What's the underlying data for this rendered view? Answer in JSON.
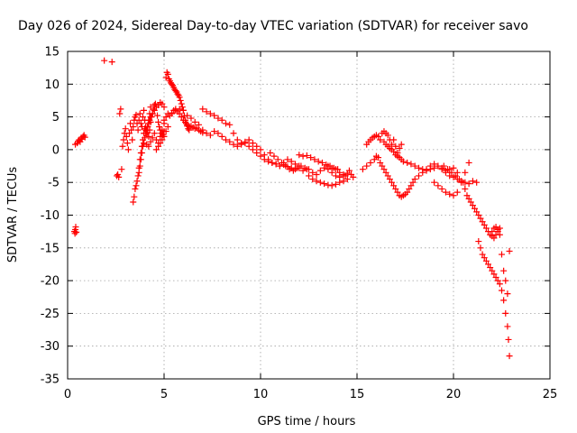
{
  "chart_data": {
    "type": "scatter",
    "title": "Day 026 of 2024, Sidereal Day-to-day VTEC variation (SDTVAR) for receiver savo",
    "xlabel": "GPS time / hours",
    "ylabel": "SDTVAR / TECUs",
    "xlim": [
      0,
      25
    ],
    "ylim": [
      -35,
      15
    ],
    "xticks": [
      0,
      5,
      10,
      15,
      20,
      25
    ],
    "yticks": [
      -35,
      -30,
      -25,
      -20,
      -15,
      -10,
      -5,
      0,
      5,
      10,
      15
    ],
    "grid": true,
    "marker": "plus",
    "marker_color": "#ff0000",
    "series": [
      {
        "name": "SDTVAR",
        "x": [
          0.35,
          0.38,
          0.4,
          0.42,
          0.45,
          0.4,
          0.5,
          0.55,
          0.6,
          0.65,
          0.7,
          0.75,
          0.8,
          0.85,
          0.9,
          1.9,
          2.3,
          2.55,
          2.6,
          2.65,
          2.7,
          2.75,
          2.8,
          2.85,
          2.9,
          2.95,
          3.0,
          3.05,
          3.1,
          3.15,
          3.2,
          3.25,
          3.3,
          3.35,
          3.4,
          3.45,
          3.5,
          3.55,
          3.6,
          3.65,
          3.7,
          3.75,
          3.8,
          3.85,
          3.9,
          3.95,
          4.0,
          4.05,
          4.1,
          4.15,
          4.2,
          4.25,
          4.3,
          3.4,
          3.45,
          3.5,
          3.55,
          3.6,
          3.65,
          3.7,
          3.75,
          3.8,
          3.85,
          3.9,
          3.95,
          4.0,
          4.05,
          4.1,
          4.15,
          4.2,
          4.25,
          4.3,
          4.35,
          4.4,
          4.45,
          4.5,
          4.55,
          4.6,
          4.65,
          4.7,
          4.75,
          4.8,
          4.85,
          4.9,
          4.95,
          5.0,
          3.7,
          3.75,
          3.8,
          3.85,
          3.9,
          3.95,
          4.0,
          4.05,
          4.1,
          4.15,
          4.2,
          4.25,
          4.3,
          4.4,
          4.5,
          4.6,
          4.7,
          4.8,
          4.9,
          5.0,
          4.1,
          4.2,
          4.3,
          4.4,
          4.5,
          4.6,
          4.7,
          4.8,
          4.9,
          5.0,
          4.6,
          4.7,
          4.8,
          4.9,
          5.0,
          5.1,
          5.2,
          5.1,
          5.15,
          5.2,
          5.25,
          5.3,
          5.35,
          5.4,
          5.45,
          5.5,
          5.55,
          5.6,
          5.65,
          5.7,
          5.75,
          5.8,
          5.85,
          5.9,
          5.95,
          6.0,
          6.05,
          6.1,
          6.15,
          6.2,
          6.25,
          6.3,
          5.0,
          5.1,
          5.2,
          5.3,
          5.4,
          5.5,
          5.6,
          5.7,
          5.8,
          5.9,
          6.0,
          6.1,
          6.2,
          6.3,
          6.4,
          6.5,
          6.6,
          6.7,
          6.8,
          6.9,
          7.0,
          5.4,
          5.6,
          5.8,
          6.0,
          6.2,
          6.4,
          6.6,
          6.8,
          7.0,
          7.2,
          7.4,
          7.6,
          7.8,
          8.0,
          8.2,
          8.4,
          8.6,
          8.8,
          9.0,
          9.2,
          9.4,
          9.6,
          9.8,
          10.0,
          10.2,
          10.4,
          10.6,
          10.8,
          11.0,
          11.2,
          11.4,
          11.6,
          11.8,
          12.0,
          7.0,
          7.2,
          7.4,
          7.6,
          7.8,
          8.0,
          8.2,
          8.4,
          8.6,
          8.8,
          9.0,
          9.2,
          9.4,
          9.6,
          9.8,
          10.0,
          10.2,
          10.4,
          10.6,
          10.8,
          11.0,
          11.2,
          11.4,
          11.6,
          11.8,
          12.0,
          12.2,
          12.4,
          10.5,
          10.7,
          10.9,
          11.1,
          11.3,
          11.5,
          11.7,
          11.9,
          12.1,
          12.3,
          12.5,
          12.7,
          12.9,
          13.1,
          13.3,
          13.5,
          13.7,
          13.9,
          14.1,
          14.3,
          12.0,
          12.2,
          12.4,
          12.6,
          12.8,
          13.0,
          13.2,
          13.4,
          13.6,
          13.8,
          14.0,
          12.5,
          12.7,
          12.9,
          13.1,
          13.3,
          13.5,
          13.7,
          13.9,
          14.1,
          14.3,
          14.5,
          13.5,
          13.7,
          13.9,
          14.1,
          14.3,
          14.4,
          14.5,
          14.6,
          14.7,
          14.8,
          15.3,
          15.5,
          15.7,
          15.9,
          15.5,
          15.6,
          15.7,
          15.8,
          15.9,
          16.0,
          16.1,
          16.2,
          16.3,
          16.4,
          16.5,
          16.6,
          16.7,
          16.8,
          16.9,
          17.0,
          17.1,
          17.2,
          17.3,
          16.0,
          16.1,
          16.2,
          16.3,
          16.4,
          16.5,
          16.6,
          16.7,
          16.8,
          16.9,
          17.0,
          17.1,
          17.2,
          17.3,
          17.4,
          17.5,
          17.6,
          17.7,
          17.8,
          17.9,
          18.0,
          18.2,
          18.4,
          18.6,
          18.8,
          19.0,
          19.2,
          19.4,
          19.6,
          19.8,
          20.0,
          20.2,
          20.4,
          20.6,
          20.8,
          21.0,
          21.2,
          16.4,
          16.5,
          16.6,
          16.7,
          16.8,
          16.9,
          17.0,
          17.1,
          17.2,
          17.3,
          17.4,
          17.6,
          17.8,
          18.0,
          18.2,
          18.4,
          18.6,
          18.8,
          19.0,
          19.2,
          19.4,
          19.6,
          19.8,
          20.0,
          20.2,
          19.0,
          19.2,
          19.4,
          19.6,
          19.8,
          20.0,
          20.2,
          20.4,
          20.6,
          20.8,
          19.5,
          19.7,
          19.9,
          20.1,
          20.3,
          20.5,
          20.6,
          20.7,
          20.8,
          20.9,
          21.0,
          21.1,
          21.2,
          21.3,
          21.4,
          21.5,
          21.6,
          21.7,
          21.8,
          21.9,
          22.0,
          22.1,
          22.2,
          22.3,
          22.4,
          21.3,
          21.4,
          21.5,
          21.6,
          21.7,
          21.8,
          21.9,
          22.0,
          22.1,
          22.2,
          22.3,
          22.4,
          22.5,
          22.6,
          22.7,
          22.8,
          22.85,
          22.9,
          22.0,
          22.1,
          22.2,
          22.3,
          22.4,
          22.5,
          22.6,
          22.7,
          22.8,
          22.9
        ],
        "y": [
          -12.5,
          -12.8,
          -12.2,
          -11.8,
          -12.6,
          0.8,
          1.0,
          1.3,
          1.5,
          1.2,
          1.8,
          1.6,
          2.0,
          2.2,
          1.9,
          13.6,
          13.4,
          -4.0,
          -3.8,
          -4.2,
          5.5,
          6.2,
          -3.0,
          0.5,
          1.5,
          2.5,
          3.2,
          2.0,
          1.0,
          0.0,
          2.5,
          4.0,
          3.0,
          1.5,
          3.5,
          4.5,
          5.0,
          5.3,
          4.0,
          3.0,
          4.5,
          5.5,
          4.0,
          3.5,
          5.0,
          6.0,
          4.5,
          3.0,
          2.5,
          3.5,
          4.5,
          5.5,
          6.5,
          -8.0,
          -7.2,
          -6.0,
          -5.5,
          -4.8,
          -4.0,
          -2.8,
          -1.5,
          -0.5,
          0.5,
          1.5,
          2.5,
          3.2,
          3.5,
          3.0,
          2.6,
          2.0,
          3.0,
          4.2,
          5.0,
          5.5,
          6.2,
          6.8,
          7.0,
          6.5,
          5.2,
          4.2,
          3.5,
          3.0,
          2.5,
          2.0,
          2.3,
          2.8,
          -3.5,
          -2.5,
          -1.5,
          -0.5,
          0.5,
          1.0,
          1.8,
          2.5,
          3.0,
          3.5,
          4.0,
          4.5,
          5.0,
          5.5,
          6.0,
          6.5,
          6.8,
          7.2,
          7.0,
          6.5,
          0.8,
          0.5,
          1.2,
          1.8,
          2.5,
          1.5,
          1.0,
          2.0,
          3.0,
          4.0,
          0.0,
          0.5,
          1.0,
          1.5,
          2.0,
          2.8,
          3.5,
          11.0,
          11.8,
          11.5,
          10.8,
          10.5,
          10.2,
          10.0,
          9.8,
          9.5,
          9.2,
          9.0,
          8.8,
          8.5,
          8.3,
          8.0,
          7.5,
          7.0,
          6.5,
          6.0,
          5.2,
          4.5,
          4.0,
          3.6,
          3.2,
          3.0,
          4.5,
          5.0,
          5.5,
          5.2,
          5.6,
          6.0,
          6.2,
          5.8,
          5.5,
          5.0,
          4.5,
          4.2,
          3.8,
          3.5,
          3.6,
          3.4,
          3.2,
          3.3,
          3.0,
          2.8,
          2.6,
          5.5,
          6.0,
          6.2,
          6.0,
          5.2,
          4.8,
          4.2,
          3.8,
          3.0,
          2.5,
          2.2,
          2.8,
          2.5,
          2.0,
          1.5,
          1.2,
          0.8,
          0.5,
          0.8,
          1.0,
          0.5,
          0.0,
          -0.5,
          -1.0,
          -1.5,
          -1.8,
          -2.0,
          -2.2,
          -2.5,
          -2.3,
          -2.6,
          -2.8,
          -3.0,
          -2.5,
          6.2,
          5.8,
          5.5,
          5.2,
          4.8,
          4.5,
          4.0,
          3.8,
          2.5,
          1.5,
          1.0,
          1.2,
          1.5,
          1.0,
          0.5,
          0.0,
          -0.8,
          -1.5,
          -2.0,
          -2.2,
          -2.5,
          -2.0,
          -1.5,
          -1.8,
          -2.2,
          -2.8,
          -3.2,
          -3.0,
          -0.5,
          -1.0,
          -1.5,
          -2.0,
          -2.5,
          -3.0,
          -3.2,
          -2.8,
          -2.5,
          -2.8,
          -3.0,
          -3.5,
          -3.8,
          -3.2,
          -2.8,
          -3.0,
          -3.5,
          -4.0,
          -4.2,
          -4.0,
          -0.8,
          -1.0,
          -0.9,
          -1.2,
          -1.5,
          -1.8,
          -2.0,
          -2.3,
          -2.5,
          -2.8,
          -3.0,
          -4.0,
          -4.5,
          -4.8,
          -5.0,
          -5.2,
          -5.4,
          -5.5,
          -5.3,
          -5.0,
          -4.8,
          -4.5,
          -2.5,
          -2.8,
          -3.0,
          -3.5,
          -3.8,
          -4.0,
          -3.6,
          -3.2,
          -3.8,
          -4.2,
          -3.0,
          -2.5,
          -2.0,
          -1.5,
          0.8,
          1.2,
          1.5,
          1.8,
          2.0,
          2.2,
          2.0,
          1.5,
          2.5,
          2.8,
          2.5,
          2.2,
          1.5,
          0.8,
          1.5,
          0.5,
          -0.5,
          0.2,
          0.8,
          -1.0,
          -1.2,
          -2.0,
          -2.5,
          -3.0,
          -3.5,
          -4.0,
          -4.5,
          -5.0,
          -5.5,
          -6.0,
          -6.5,
          -7.0,
          -7.2,
          -7.0,
          -6.8,
          -6.5,
          -6.0,
          -5.5,
          -5.0,
          -4.5,
          -4.0,
          -3.5,
          -3.0,
          -2.5,
          -2.2,
          -2.5,
          -3.0,
          -3.5,
          -4.0,
          -4.2,
          -4.5,
          -4.8,
          -5.0,
          -5.2,
          -4.8,
          -5.0,
          1.2,
          0.8,
          0.5,
          0.2,
          0.0,
          -0.3,
          -0.8,
          -1.0,
          -1.2,
          -1.5,
          -1.8,
          -2.0,
          -2.2,
          -2.5,
          -2.8,
          -3.0,
          -3.2,
          -3.0,
          -2.8,
          -2.5,
          -2.8,
          -3.2,
          -3.0,
          -2.8,
          -3.5,
          -5.0,
          -5.5,
          -6.0,
          -6.5,
          -6.8,
          -7.0,
          -6.5,
          -5.0,
          -3.5,
          -2.0,
          -2.5,
          -3.0,
          -3.5,
          -4.0,
          -4.5,
          -5.0,
          -6.0,
          -7.0,
          -7.5,
          -8.0,
          -8.5,
          -9.0,
          -9.5,
          -10.0,
          -10.5,
          -11.0,
          -11.5,
          -12.0,
          -12.5,
          -13.0,
          -13.2,
          -13.5,
          -13.0,
          -12.5,
          -12.0,
          -14.0,
          -15.0,
          -16.0,
          -16.5,
          -17.0,
          -17.5,
          -18.0,
          -18.5,
          -19.0,
          -19.5,
          -20.0,
          -20.5,
          -21.5,
          -23.0,
          -25.0,
          -27.0,
          -29.0,
          -31.5,
          -12.5,
          -12.0,
          -11.8,
          -12.2,
          -13.0,
          -16.0,
          -18.5,
          -20.0,
          -22.0,
          -15.5
        ]
      }
    ]
  }
}
